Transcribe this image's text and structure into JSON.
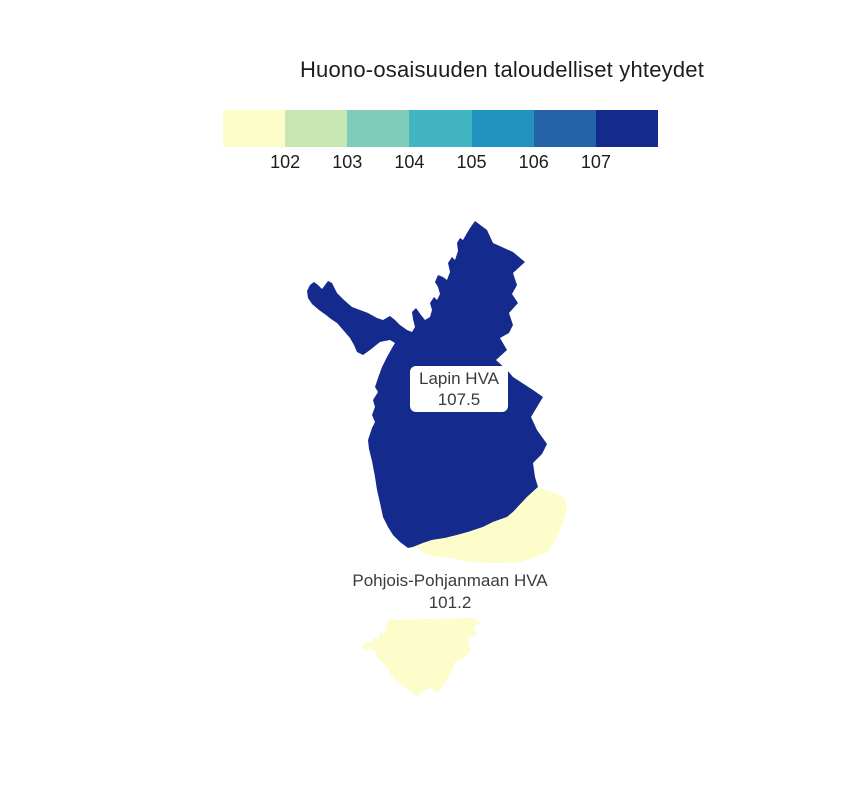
{
  "title": "Huono-osaisuuden taloudelliset yhteydet",
  "legend": {
    "colors": [
      "#fdfdc9",
      "#c8e8b3",
      "#7fccbb",
      "#41b5c4",
      "#2191c0",
      "#2563a8",
      "#142a8c"
    ],
    "ticks": [
      "102",
      "103",
      "104",
      "105",
      "106",
      "107"
    ]
  },
  "map": {
    "regions": [
      {
        "id": "lapin-hva",
        "name": "Lapin HVA",
        "value": "107.5",
        "color": "#142a8c",
        "polygons": [
          "475,221 487,230 493,243 513,252 525,262 513,273 517,285 512,294 518,303 509,313 513,325 509,333 500,338 507,350 496,360 507,370 513,377 533,390 543,397 537,407 531,417 537,430 547,444 542,454 533,463 535,477 538,487 527,497 513,512 507,517 493,522 483,527 468,532 457,535 445,538 432,540 423,543 413,547 408,548 400,542 393,535 388,527 383,517 380,503 377,490 375,477 372,461 369,449 368,440 372,428 375,422 372,415 375,407 373,400 378,392 375,387 378,378 382,367 387,357 392,348 395,343 390,340 380,342 370,350 363,355 357,352 354,345 350,338 344,331 337,323 331,319 326,315 319,310 312,304 308,298 307,291 310,285 314,282 318,285 322,289 325,285 328,281 332,283 337,293 344,300 352,307 360,310 368,313 377,318 383,320 390,316 395,320 400,325 407,330 412,332 415,327 413,319 412,312 416,308 421,315 425,320 430,317 432,310 430,303 434,297 437,300 440,294 438,287 435,282 438,275 443,277 447,280 450,272 448,263 452,257 455,260 458,251 457,243 460,238 463,240 467,233 470,228"
        ]
      },
      {
        "id": "pohjois-pohjanmaan-hva",
        "name": "Pohjois-Pohjanmaan HVA",
        "value": "101.2",
        "color": "#fcfdca",
        "polygons": [
          "408,548 413,547 423,543 432,540 445,538 457,535 468,532 483,527 493,522 507,517 513,512 527,497 538,487 548,491 557,494 565,499 567,510 563,522 558,535 553,545 547,552 533,558 520,562 503,563 487,563 470,562 453,558 440,557 427,555 418,548",
          "388,620 473,618 480,622 474,628 477,635 468,638 471,651 465,657 455,662 451,672 446,682 441,688 438,693 430,688 423,691 417,697 411,692 404,687 398,682 392,676 388,669 383,663 378,658 376,652 369,648 366,652 362,647 367,641 371,643 374,637 378,640 381,632 384,635"
        ]
      }
    ]
  },
  "chart_data": {
    "type": "heatmap",
    "subtype": "choropleth-map",
    "title": "Huono-osaisuuden taloudelliset yhteydet",
    "categories": [
      "Lapin HVA",
      "Pohjois-Pohjanmaan HVA"
    ],
    "values": [
      107.5,
      101.2
    ],
    "colorbar_ticks": [
      102,
      103,
      104,
      105,
      106,
      107
    ],
    "colorbar_colors": [
      "#fdfdc9",
      "#c8e8b3",
      "#7fccbb",
      "#41b5c4",
      "#2191c0",
      "#2563a8",
      "#142a8c"
    ],
    "legend_position": "top",
    "grid": false
  }
}
